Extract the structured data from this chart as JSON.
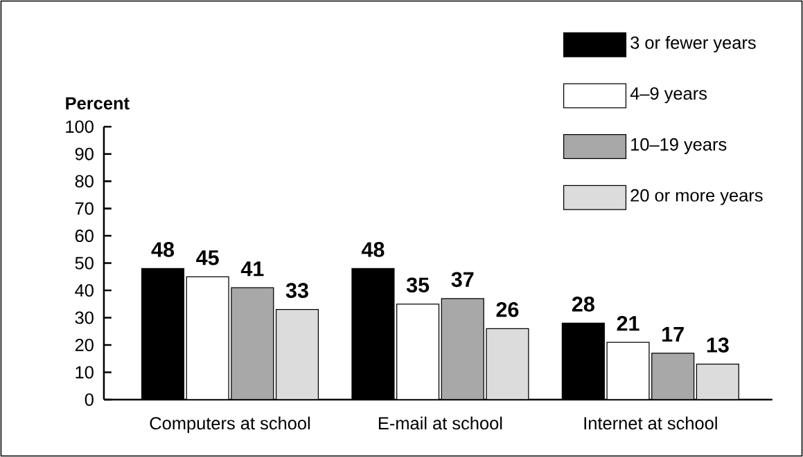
{
  "chart_data": {
    "type": "bar",
    "ylabel": "Percent",
    "categories": [
      "Computers at school",
      "E-mail at school",
      "Internet at school"
    ],
    "series": [
      {
        "name": "3 or fewer years",
        "color": "#000000",
        "values": [
          48,
          48,
          28
        ]
      },
      {
        "name": "4–9 years",
        "color": "#ffffff",
        "values": [
          45,
          35,
          21
        ]
      },
      {
        "name": "10–19 years",
        "color": "#a8a8a8",
        "values": [
          41,
          37,
          17
        ]
      },
      {
        "name": "20 or more years",
        "color": "#dcdcdc",
        "values": [
          33,
          26,
          13
        ]
      }
    ],
    "ylim": [
      0,
      100
    ],
    "yticks": [
      0,
      10,
      20,
      30,
      40,
      50,
      60,
      70,
      80,
      90,
      100
    ],
    "data_labels": true,
    "legend": "top right"
  }
}
